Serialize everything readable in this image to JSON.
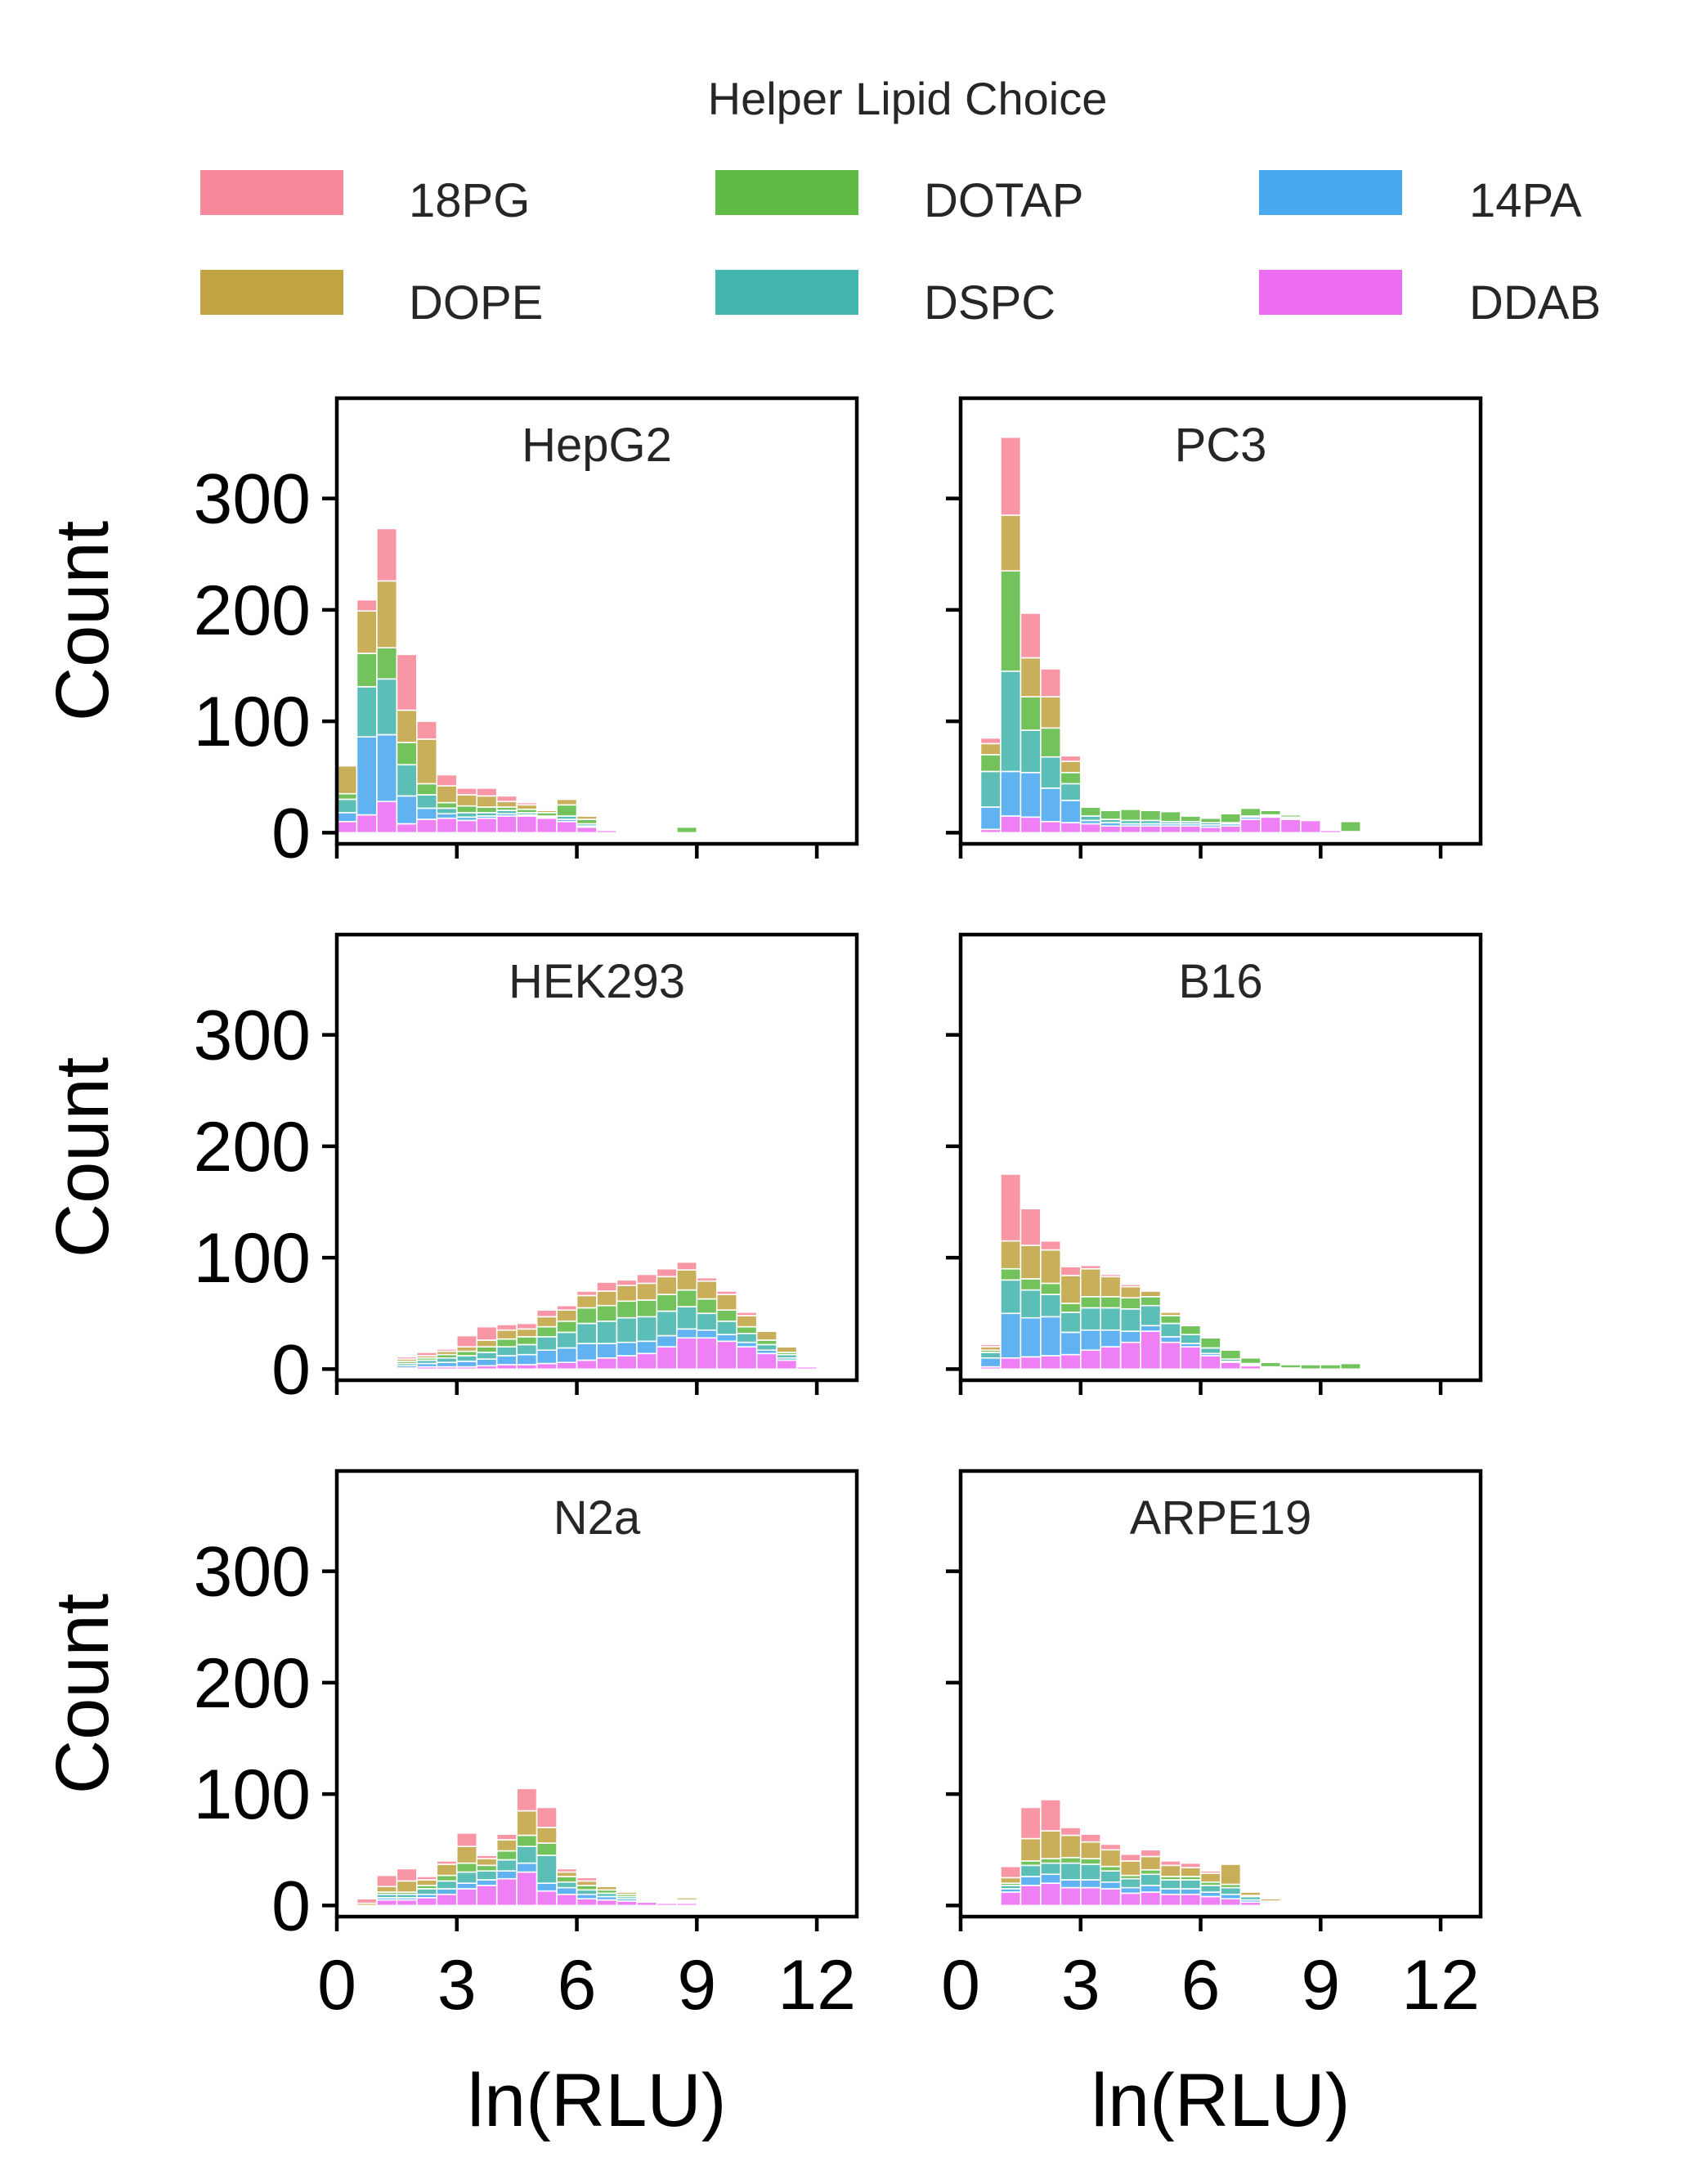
{
  "legend": {
    "title": "Helper Lipid Choice",
    "entries": [
      {
        "name": "18PG",
        "color": "#f7879a"
      },
      {
        "name": "DOTAP",
        "color": "#60bb46"
      },
      {
        "name": "14PA",
        "color": "#4aa8ee"
      },
      {
        "name": "DOPE",
        "color": "#c3a444"
      },
      {
        "name": "DSPC",
        "color": "#45b6ad"
      },
      {
        "name": "DDAB",
        "color": "#ec6df2"
      }
    ]
  },
  "chart_data": {
    "type": "bar",
    "stacked": true,
    "xlabel": "ln(RLU)",
    "ylabel": "Count",
    "xlim": [
      0,
      13
    ],
    "ylim": [
      0,
      390
    ],
    "xticks": [
      0,
      3,
      6,
      9,
      12
    ],
    "yticks": [
      0,
      100,
      200,
      300
    ],
    "bin_width": 0.5,
    "stack_order": [
      "DDAB",
      "14PA",
      "DSPC",
      "DOTAP",
      "DOPE",
      "18PG"
    ],
    "colors": {
      "18PG": "#f7879a",
      "DOPE": "#c3a444",
      "DOTAP": "#60bb46",
      "DSPC": "#45b6ad",
      "14PA": "#4aa8ee",
      "DDAB": "#ec6df2"
    },
    "panels": [
      {
        "title": "HepG2",
        "x": [
          0.25,
          0.75,
          1.25,
          1.75,
          2.25,
          2.75,
          3.25,
          3.75,
          4.25,
          4.75,
          5.25,
          5.75,
          6.25,
          6.75,
          7.25,
          7.75,
          8.25,
          8.75
        ],
        "series": [
          {
            "name": "DDAB",
            "values": [
              10,
              16,
              28,
              8,
              12,
              13,
              11,
              13,
              15,
              15,
              13,
              10,
              5,
              2,
              0,
              0,
              0,
              0
            ]
          },
          {
            "name": "14PA",
            "values": [
              8,
              70,
              60,
              25,
              10,
              4,
              3,
              2,
              2,
              1,
              1,
              2,
              1,
              0,
              0,
              0,
              0,
              0
            ]
          },
          {
            "name": "DSPC",
            "values": [
              12,
              45,
              50,
              28,
              12,
              5,
              4,
              3,
              3,
              2,
              1,
              3,
              2,
              0,
              1,
              1,
              0,
              0
            ]
          },
          {
            "name": "DOTAP",
            "values": [
              5,
              30,
              28,
              20,
              10,
              5,
              6,
              5,
              3,
              3,
              3,
              10,
              4,
              0,
              1,
              1,
              0,
              5
            ]
          },
          {
            "name": "DOPE",
            "values": [
              25,
              38,
              60,
              29,
              40,
              15,
              10,
              10,
              5,
              4,
              2,
              5,
              3,
              0,
              0,
              0,
              0,
              0
            ]
          },
          {
            "name": "18PG",
            "values": [
              0,
              10,
              47,
              50,
              16,
              10,
              6,
              7,
              5,
              2,
              0,
              1,
              1,
              0,
              0,
              0,
              0,
              0
            ]
          }
        ]
      },
      {
        "title": "PC3",
        "x": [
          0.75,
          1.25,
          1.75,
          2.25,
          2.75,
          3.25,
          3.75,
          4.25,
          4.75,
          5.25,
          5.75,
          6.25,
          6.75,
          7.25,
          7.75,
          8.25,
          8.75,
          9.25,
          9.75
        ],
        "series": [
          {
            "name": "DDAB",
            "values": [
              3,
              15,
              14,
              10,
              9,
              8,
              6,
              6,
              6,
              6,
              6,
              5,
              6,
              12,
              14,
              12,
              11,
              2,
              1
            ]
          },
          {
            "name": "14PA",
            "values": [
              20,
              40,
              40,
              30,
              20,
              3,
              3,
              2,
              2,
              2,
              2,
              2,
              2,
              2,
              1,
              1,
              1,
              0,
              0
            ]
          },
          {
            "name": "DSPC",
            "values": [
              32,
              90,
              38,
              28,
              15,
              4,
              3,
              3,
              3,
              2,
              2,
              2,
              1,
              1,
              1,
              1,
              0,
              0,
              0
            ]
          },
          {
            "name": "DOTAP",
            "values": [
              15,
              90,
              30,
              26,
              10,
              8,
              8,
              10,
              9,
              9,
              5,
              4,
              8,
              7,
              4,
              2,
              1,
              0,
              9
            ]
          },
          {
            "name": "DOPE",
            "values": [
              10,
              50,
              35,
              28,
              10,
              1,
              1,
              1,
              1,
              1,
              1,
              1,
              1,
              1,
              1,
              1,
              1,
              0,
              0
            ]
          },
          {
            "name": "18PG",
            "values": [
              5,
              70,
              40,
              25,
              5,
              0,
              0,
              0,
              0,
              0,
              0,
              0,
              0,
              0,
              0,
              0,
              0,
              0,
              0
            ]
          }
        ]
      },
      {
        "title": "HEK293",
        "x": [
          1.25,
          1.75,
          2.25,
          2.75,
          3.25,
          3.75,
          4.25,
          4.75,
          5.25,
          5.75,
          6.25,
          6.75,
          7.25,
          7.75,
          8.25,
          8.75,
          9.25,
          9.75,
          10.25,
          10.75,
          11.25,
          11.75
        ],
        "series": [
          {
            "name": "DDAB",
            "values": [
              1,
              1,
              2,
              2,
              2,
              3,
              4,
              4,
              5,
              6,
              8,
              10,
              12,
              14,
              20,
              28,
              28,
              25,
              20,
              14,
              8,
              2
            ]
          },
          {
            "name": "14PA",
            "values": [
              1,
              2,
              3,
              4,
              5,
              6,
              8,
              9,
              12,
              13,
              15,
              13,
              12,
              11,
              10,
              8,
              7,
              6,
              4,
              3,
              2,
              1
            ]
          },
          {
            "name": "DSPC",
            "values": [
              1,
              2,
              3,
              4,
              5,
              6,
              8,
              9,
              12,
              14,
              18,
              20,
              22,
              22,
              22,
              20,
              15,
              12,
              8,
              5,
              3,
              1
            ]
          },
          {
            "name": "DOTAP",
            "values": [
              1,
              2,
              2,
              3,
              4,
              5,
              7,
              7,
              9,
              10,
              14,
              14,
              15,
              15,
              15,
              15,
              13,
              10,
              6,
              4,
              2,
              1
            ]
          },
          {
            "name": "DOPE",
            "values": [
              0,
              2,
              2,
              3,
              4,
              6,
              8,
              7,
              9,
              10,
              11,
              13,
              14,
              15,
              16,
              18,
              16,
              14,
              10,
              8,
              5,
              1
            ]
          },
          {
            "name": "18PG",
            "values": [
              0,
              2,
              3,
              2,
              10,
              12,
              5,
              5,
              6,
              4,
              4,
              8,
              5,
              8,
              7,
              7,
              3,
              3,
              3,
              1,
              1,
              0
            ]
          }
        ]
      },
      {
        "title": "B16",
        "x": [
          0.75,
          1.25,
          1.75,
          2.25,
          2.75,
          3.25,
          3.75,
          4.25,
          4.75,
          5.25,
          5.75,
          6.25,
          6.75,
          7.25,
          7.75,
          8.25,
          8.75,
          9.25,
          9.75
        ],
        "series": [
          {
            "name": "DDAB",
            "values": [
              2,
              10,
              11,
              12,
              13,
              17,
              20,
              24,
              34,
              24,
              20,
              12,
              6,
              3,
              1,
              1,
              0,
              0,
              0
            ]
          },
          {
            "name": "14PA",
            "values": [
              8,
              40,
              35,
              35,
              20,
              18,
              15,
              10,
              5,
              5,
              3,
              2,
              1,
              1,
              0,
              0,
              0,
              0,
              0
            ]
          },
          {
            "name": "DSPC",
            "values": [
              5,
              30,
              25,
              20,
              18,
              20,
              20,
              20,
              18,
              12,
              8,
              5,
              2,
              1,
              1,
              0,
              0,
              0,
              0
            ]
          },
          {
            "name": "DOTAP",
            "values": [
              2,
              10,
              10,
              10,
              8,
              10,
              10,
              10,
              8,
              7,
              8,
              9,
              8,
              5,
              4,
              3,
              4,
              4,
              5
            ]
          },
          {
            "name": "DOPE",
            "values": [
              3,
              25,
              30,
              30,
              25,
              25,
              18,
              10,
              5,
              3,
              1,
              0,
              0,
              0,
              0,
              0,
              0,
              0,
              0
            ]
          },
          {
            "name": "18PG",
            "values": [
              2,
              60,
              33,
              8,
              8,
              3,
              2,
              2,
              0,
              0,
              0,
              0,
              0,
              0,
              0,
              0,
              0,
              0,
              0
            ]
          }
        ]
      },
      {
        "title": "N2a",
        "x": [
          0.75,
          1.25,
          1.75,
          2.25,
          2.75,
          3.25,
          3.75,
          4.25,
          4.75,
          5.25,
          5.75,
          6.25,
          6.75,
          7.25,
          7.75,
          8.25,
          8.75,
          9.25,
          9.75,
          10.25,
          10.75
        ],
        "series": [
          {
            "name": "DDAB",
            "values": [
              0,
              5,
              5,
              7,
              10,
              15,
              18,
              24,
              30,
              13,
              10,
              6,
              5,
              4,
              3,
              2,
              2,
              1,
              1,
              1,
              1
            ]
          },
          {
            "name": "14PA",
            "values": [
              0,
              2,
              2,
              3,
              5,
              5,
              5,
              7,
              8,
              7,
              6,
              4,
              3,
              2,
              1,
              1,
              1,
              0,
              0,
              0,
              0
            ]
          },
          {
            "name": "DSPC",
            "values": [
              0,
              3,
              3,
              5,
              7,
              10,
              8,
              10,
              15,
              25,
              5,
              4,
              3,
              2,
              1,
              1,
              1,
              0,
              0,
              0,
              0
            ]
          },
          {
            "name": "DOTAP",
            "values": [
              0,
              2,
              2,
              3,
              5,
              8,
              5,
              8,
              10,
              11,
              5,
              4,
              3,
              2,
              1,
              1,
              1,
              1,
              1,
              1,
              1
            ]
          },
          {
            "name": "DOPE",
            "values": [
              2,
              5,
              10,
              5,
              10,
              15,
              6,
              10,
              22,
              14,
              4,
              4,
              3,
              2,
              1,
              1,
              2,
              1,
              1,
              1,
              1
            ]
          },
          {
            "name": "18PG",
            "values": [
              4,
              10,
              11,
              3,
              3,
              12,
              3,
              5,
              20,
              18,
              3,
              3,
              1,
              1,
              0,
              0,
              0,
              0,
              0,
              0,
              0
            ]
          }
        ]
      },
      {
        "title": "ARPE19",
        "x": [
          1.25,
          1.75,
          2.25,
          2.75,
          3.25,
          3.75,
          4.25,
          4.75,
          5.25,
          5.75,
          6.25,
          6.75,
          7.25,
          7.75
        ],
        "series": [
          {
            "name": "DDAB",
            "values": [
              12,
              18,
              20,
              16,
              16,
              15,
              11,
              12,
              10,
              10,
              8,
              6,
              3,
              1
            ]
          },
          {
            "name": "14PA",
            "values": [
              3,
              8,
              8,
              7,
              7,
              6,
              5,
              6,
              5,
              5,
              4,
              4,
              2,
              1
            ]
          },
          {
            "name": "DSPC",
            "values": [
              3,
              10,
              10,
              15,
              14,
              10,
              8,
              10,
              8,
              8,
              6,
              6,
              3,
              1
            ]
          },
          {
            "name": "DOTAP",
            "values": [
              2,
              4,
              4,
              5,
              5,
              4,
              3,
              4,
              3,
              3,
              3,
              3,
              1,
              1
            ]
          },
          {
            "name": "DOPE",
            "values": [
              5,
              20,
              25,
              20,
              15,
              15,
              13,
              12,
              10,
              8,
              8,
              18,
              3,
              2
            ]
          },
          {
            "name": "18PG",
            "values": [
              10,
              28,
              28,
              7,
              7,
              5,
              6,
              6,
              4,
              4,
              2,
              0,
              0,
              0
            ]
          }
        ]
      }
    ]
  }
}
